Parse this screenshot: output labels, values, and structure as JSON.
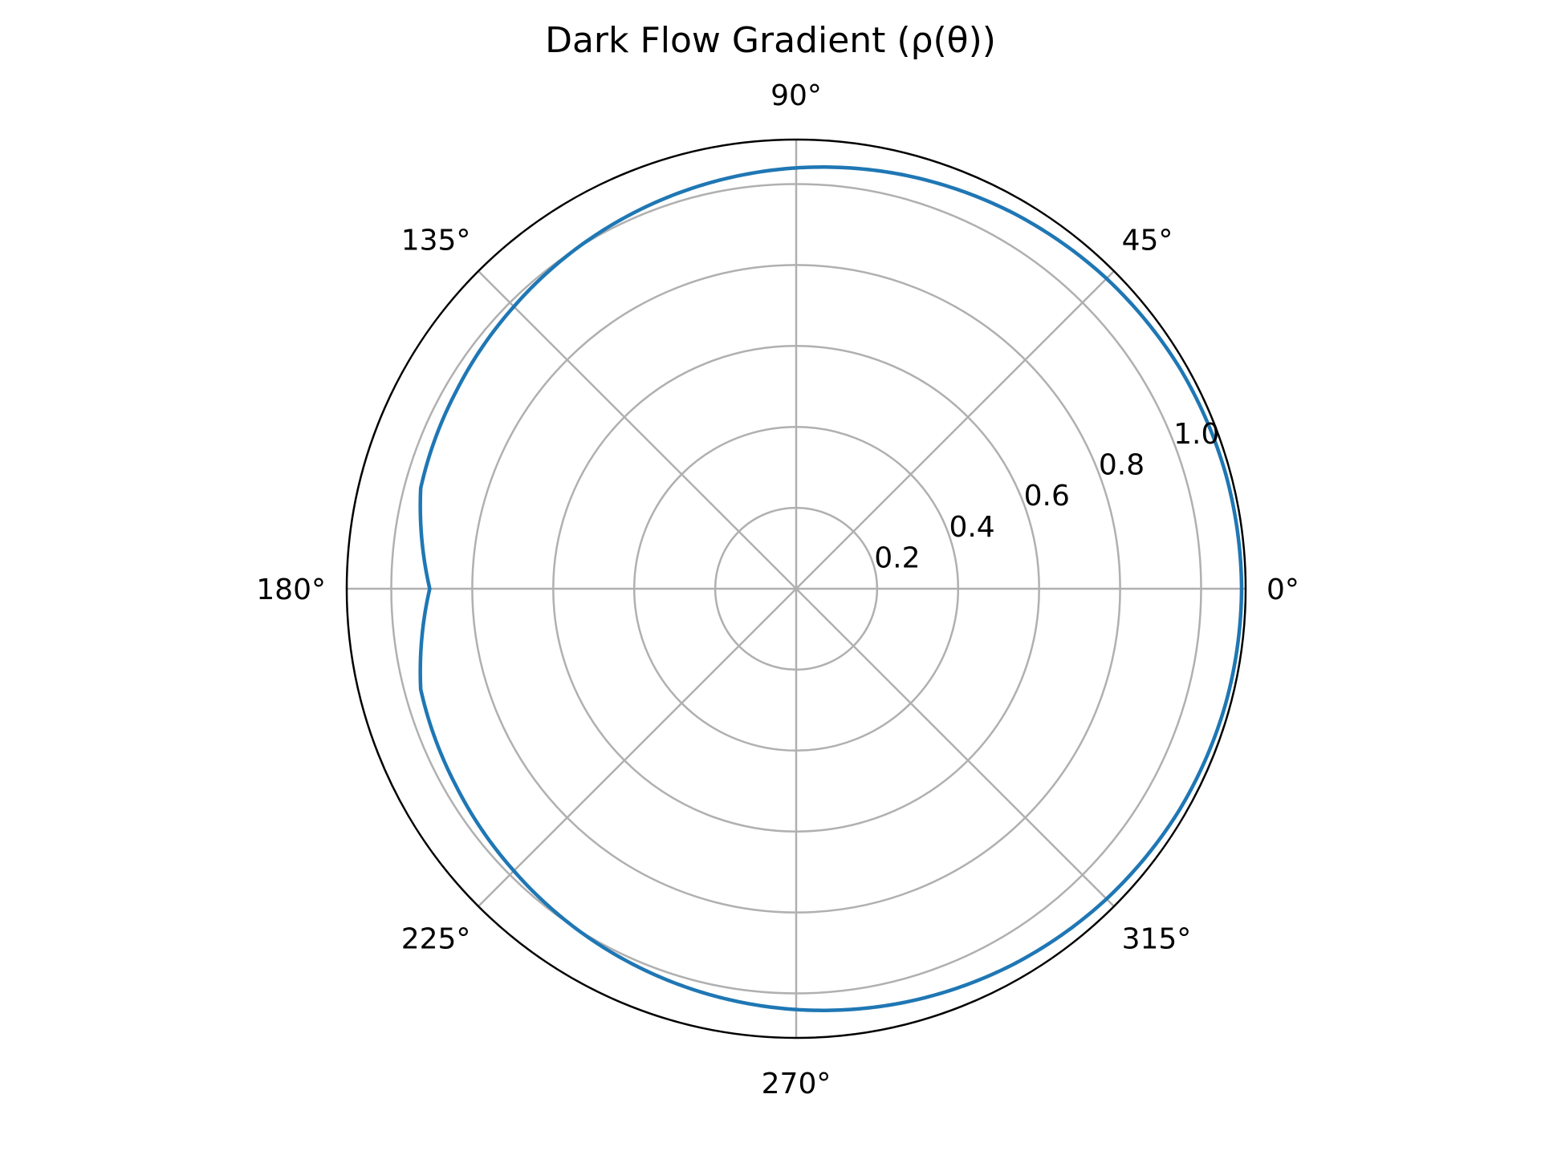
{
  "chart_data": {
    "type": "line",
    "projection": "polar",
    "title": "Dark Flow Gradient (ρ(θ))",
    "angle_ticks": [
      "0°",
      "45°",
      "90°",
      "135°",
      "180°",
      "225°",
      "270°",
      "315°"
    ],
    "angle_tick_values": [
      0,
      45,
      90,
      135,
      180,
      225,
      270,
      315
    ],
    "radial_ticks": [
      "0.2",
      "0.4",
      "0.6",
      "0.8",
      "1.0"
    ],
    "radial_tick_values": [
      0.2,
      0.4,
      0.6,
      0.8,
      1.0
    ],
    "rlim": [
      0,
      1.11
    ],
    "grid": true,
    "series": [
      {
        "color": "#1f77b4",
        "theta_deg": [
          0,
          15,
          30,
          45,
          60,
          75,
          90,
          105,
          120,
          135,
          150,
          165,
          180,
          195,
          210,
          225,
          240,
          255,
          270,
          285,
          300,
          315,
          330,
          345,
          360
        ],
        "r": [
          1.1,
          1.098,
          1.093,
          1.084,
          1.072,
          1.057,
          1.04,
          1.022,
          1.004,
          0.986,
          0.971,
          0.96,
          0.905,
          0.96,
          0.971,
          0.986,
          1.004,
          1.022,
          1.04,
          1.057,
          1.072,
          1.084,
          1.093,
          1.098,
          1.1
        ]
      }
    ]
  }
}
